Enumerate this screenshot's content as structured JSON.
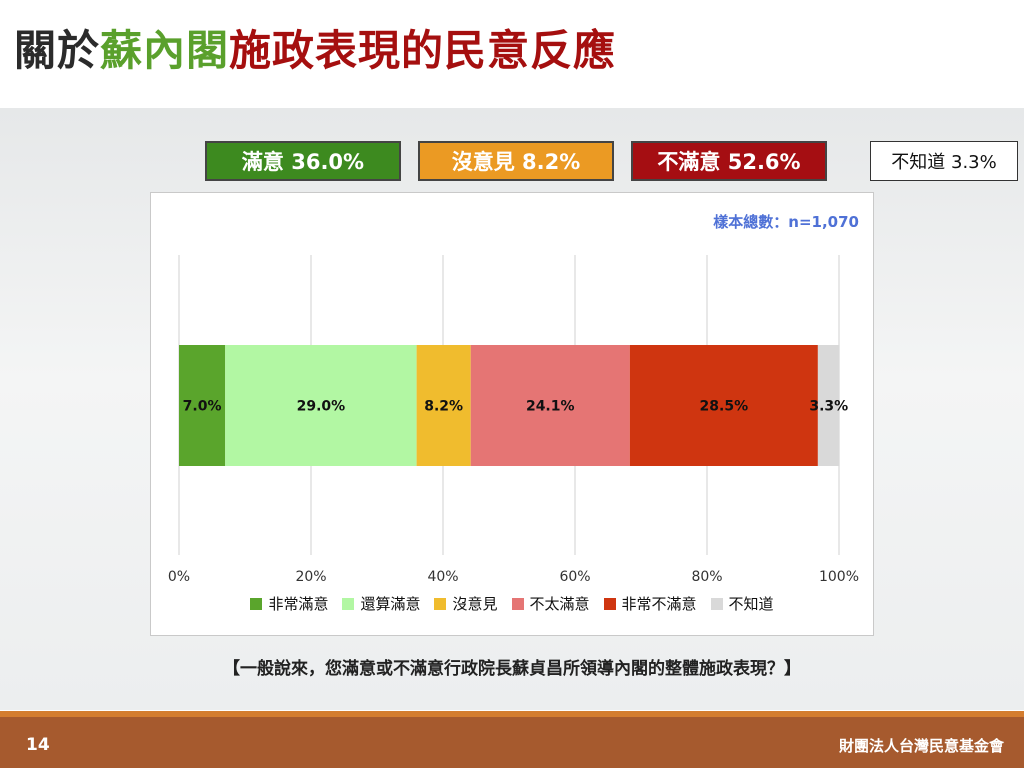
{
  "title": {
    "part1": "關於",
    "part2": "蘇內閣",
    "part3": "施政表現的民意反應",
    "color1": "#2b2b2b",
    "color2": "#5aa02c",
    "color3": "#a50f0f"
  },
  "summary": [
    {
      "label": "滿意 36.0%",
      "color": "#3d8a1f"
    },
    {
      "label": "沒意見 8.2%",
      "color": "#eb9a23"
    },
    {
      "label": "不滿意 52.6%",
      "color": "#a50e12"
    },
    {
      "label": "不知道 3.3%",
      "color": "#ffffff"
    }
  ],
  "sample_text": "樣本總數：n=1,070",
  "question_text": "【一般說來，您滿意或不滿意行政院長蘇貞昌所領導內閣的整體施政表現？】",
  "footer": {
    "page_number": "14",
    "org_name": "財團法人台灣民意基金會"
  },
  "chart_data": {
    "type": "bar",
    "orientation": "horizontal",
    "stacked": true,
    "xlim": [
      0,
      100
    ],
    "x_ticks": [
      "0%",
      "20%",
      "40%",
      "60%",
      "80%",
      "100%"
    ],
    "grid": true,
    "legend_position": "bottom",
    "series": [
      {
        "name": "非常滿意",
        "value": 7.0,
        "label": "7.0%",
        "color": "#5aa52c"
      },
      {
        "name": "還算滿意",
        "value": 29.0,
        "label": "29.0%",
        "color": "#b2f7a3"
      },
      {
        "name": "沒意見",
        "value": 8.2,
        "label": "8.2%",
        "color": "#f0bc2e"
      },
      {
        "name": "不太滿意",
        "value": 24.1,
        "label": "24.1%",
        "color": "#e57574"
      },
      {
        "name": "非常不滿意",
        "value": 28.5,
        "label": "28.5%",
        "color": "#cf3510"
      },
      {
        "name": "不知道",
        "value": 3.3,
        "label": "3.3%",
        "color": "#d9d9d9"
      }
    ]
  }
}
